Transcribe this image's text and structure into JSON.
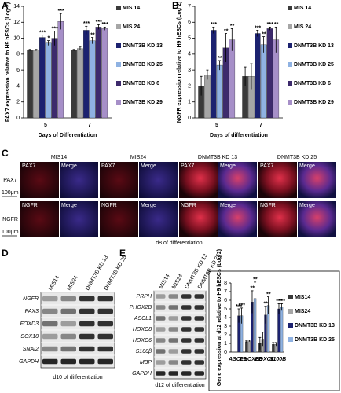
{
  "chart_data": [
    {
      "type": "bar",
      "panel_label": "A",
      "ylabel": "PAX7 expression relative to H9 hESCs (Log 2)",
      "xlabel": "Days of Differentiation",
      "categories": [
        "5",
        "7"
      ],
      "ylim": [
        0,
        14
      ],
      "yticks": [
        0,
        2,
        4,
        6,
        8,
        10,
        12,
        14
      ],
      "legend": "right",
      "series": [
        {
          "name": "MIS 14",
          "color": "#3a3a3a",
          "values": [
            8.5,
            8.5
          ],
          "errors": [
            0.1,
            0.1
          ],
          "significance": [
            null,
            null
          ]
        },
        {
          "name": "MIS 24",
          "color": "#a6a6a6",
          "values": [
            8.5,
            8.7
          ],
          "errors": [
            0.1,
            0.2
          ],
          "significance": [
            null,
            null
          ]
        },
        {
          "name": "DNMT3B KD 13",
          "color": "#1c2270",
          "values": [
            10.1,
            11.0
          ],
          "errors": [
            0.3,
            0.5
          ],
          "significance": [
            "***",
            "***"
          ]
        },
        {
          "name": "DNMT3B KD 25",
          "color": "#8fb2e2",
          "values": [
            9.4,
            9.7
          ],
          "errors": [
            0.3,
            0.4
          ],
          "significance": [
            "*",
            "**"
          ]
        },
        {
          "name": "DNMT3B KD 6",
          "color": "#3d2a6c",
          "values": [
            10.0,
            11.4
          ],
          "errors": [
            0.9,
            0.3
          ],
          "significance": [
            "***",
            "***"
          ]
        },
        {
          "name": "DNMT3B KD 29",
          "color": "#a68fc8",
          "values": [
            12.1,
            11.2
          ],
          "errors": [
            1.0,
            0.2
          ],
          "significance": [
            "***",
            "***"
          ]
        }
      ]
    },
    {
      "type": "bar",
      "panel_label": "B",
      "ylabel": "NGFR expression relative to H9 hESCs (Log 2)",
      "xlabel": "Days of differentiation",
      "categories": [
        "5",
        "7"
      ],
      "ylim": [
        0,
        7
      ],
      "yticks": [
        0,
        1,
        2,
        3,
        4,
        5,
        6,
        7
      ],
      "legend": "right",
      "series": [
        {
          "name": "MIS 14",
          "color": "#3a3a3a",
          "values": [
            2.0,
            2.6
          ],
          "errors": [
            0.6,
            0.6
          ],
          "significance": [
            null,
            null
          ]
        },
        {
          "name": "MIS 24",
          "color": "#a6a6a6",
          "values": [
            2.7,
            2.6
          ],
          "errors": [
            0.3,
            0.8
          ],
          "significance": [
            null,
            null
          ]
        },
        {
          "name": "DNMT3B KD 13",
          "color": "#1c2270",
          "values": [
            5.5,
            5.3
          ],
          "errors": [
            0.2,
            0.2
          ],
          "significance": [
            "***",
            "***"
          ]
        },
        {
          "name": "DNMT3B KD 25",
          "color": "#8fb2e2",
          "values": [
            3.3,
            4.6
          ],
          "errors": [
            0.3,
            0.5
          ],
          "significance": [
            "**",
            "**"
          ]
        },
        {
          "name": "DNMT3B KD 6",
          "color": "#3d2a6c",
          "values": [
            4.4,
            5.6
          ],
          "errors": [
            0.9,
            0.1
          ],
          "significance": [
            "**",
            "***"
          ]
        },
        {
          "name": "DNMT3B KD 29",
          "color": "#a68fc8",
          "values": [
            4.9,
            4.9
          ],
          "errors": [
            0.7,
            0.8
          ],
          "significance": [
            "**",
            "**"
          ]
        }
      ]
    },
    {
      "type": "bar",
      "ylabel": "Gene expression at d12 relative to H9 hESCs (Log 2)",
      "categories": [
        "ASCL1",
        "PHOX2B",
        "HOXC8",
        "S100B"
      ],
      "ylim": [
        0,
        8
      ],
      "yticks": [
        0,
        1,
        2,
        3,
        4,
        5,
        6,
        7,
        8
      ],
      "legend": "right",
      "series": [
        {
          "name": "MIS14",
          "color": "#3a3a3a",
          "values": [
            null,
            1.2,
            1.0,
            0.9
          ],
          "errors": [
            null,
            0.1,
            0.7,
            0.2
          ],
          "significance": [
            null,
            null,
            null,
            null
          ]
        },
        {
          "name": "MIS24",
          "color": "#a6a6a6",
          "values": [
            null,
            1.3,
            1.5,
            0.9
          ],
          "errors": [
            null,
            0.1,
            0.8,
            0.2
          ],
          "significance": [
            null,
            null,
            null,
            null
          ]
        },
        {
          "name": "DNMT3B KD 13",
          "color": "#1c2270",
          "values": [
            4.2,
            5.8,
            4.3,
            5.0
          ],
          "errors": [
            0.8,
            1.3,
            1.0,
            0.6
          ],
          "significance": [
            "***",
            "**",
            "**",
            "***"
          ]
        },
        {
          "name": "DNMT3B KD 25",
          "color": "#8fb2e2",
          "values": [
            4.2,
            6.2,
            5.4,
            5.2
          ],
          "errors": [
            0.9,
            1.9,
            1.0,
            0.4
          ],
          "significance": [
            "***",
            "**",
            "**",
            "***"
          ]
        }
      ]
    }
  ],
  "microscopy": {
    "panel_label": "C",
    "columns": [
      "MIS14",
      "MIS24",
      "DNMT3B KD 13",
      "DNMT3B KD 25"
    ],
    "rows": [
      {
        "name": "PAX7",
        "channels": [
          "PAX7",
          "Merge"
        ]
      },
      {
        "name": "NGFR",
        "channels": [
          "NGFR",
          "Merge"
        ]
      }
    ],
    "scale_bar": "100μm",
    "caption": "d8 of differentiation"
  },
  "blot_d": {
    "panel_label": "D",
    "lanes": [
      "MIS14",
      "MIS24",
      "DNMT3B KD 13",
      "DNMT3B KD 25"
    ],
    "rows": [
      "NGFR",
      "PAX3",
      "FOXD3",
      "SOX10",
      "SNAI2",
      "GAPDH"
    ],
    "caption": "d10 of differentiation"
  },
  "blot_e": {
    "panel_label": "E",
    "lanes": [
      "MIS14",
      "MIS24",
      "DNMT3B KD 13",
      "DNMT3B KD 25"
    ],
    "rows": [
      "PRPH",
      "PHOX2B",
      "ASCL1",
      "HOXC8",
      "HOXC6",
      "S100β",
      "MBP",
      "GAPDH"
    ],
    "caption": "d12 of differentiation"
  }
}
